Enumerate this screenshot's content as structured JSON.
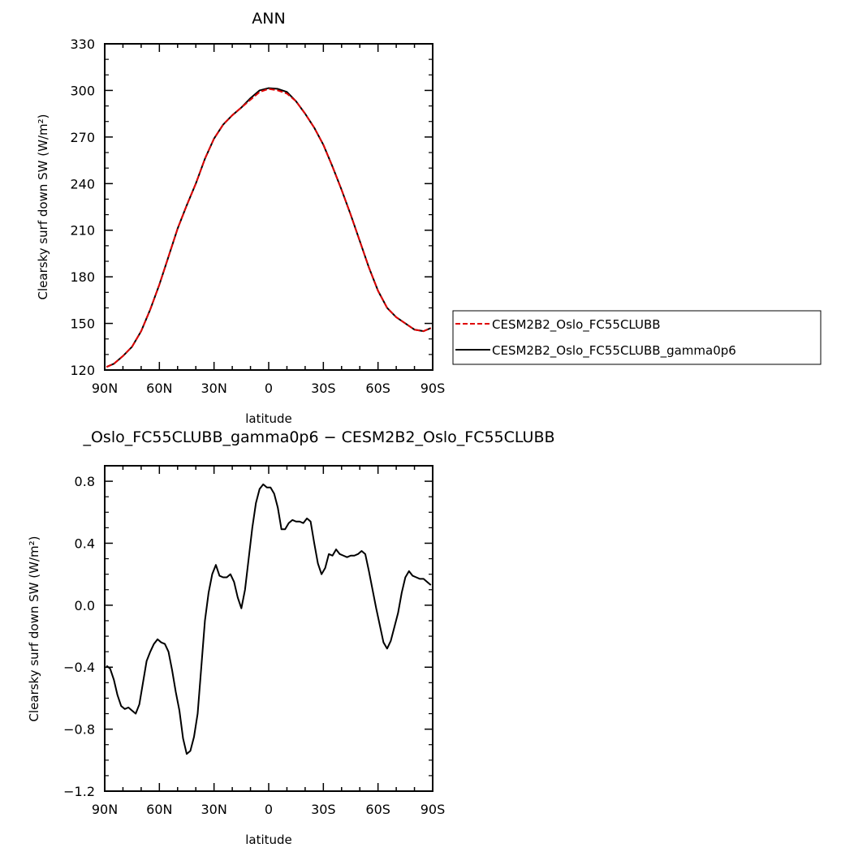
{
  "chart_data": [
    {
      "type": "line",
      "title": "ANN",
      "xlabel": "latitude",
      "ylabel": "Clearsky surf down SW (W/m²)",
      "xlim": [
        90,
        -90
      ],
      "ylim": [
        120,
        330
      ],
      "x_ticks": [
        90,
        60,
        30,
        0,
        -30,
        -60,
        -90
      ],
      "x_tick_labels": [
        "90N",
        "60N",
        "30N",
        "0",
        "30S",
        "60S",
        "90S"
      ],
      "y_ticks": [
        120,
        150,
        180,
        210,
        240,
        270,
        300,
        330
      ],
      "y_tick_labels": [
        "120",
        "150",
        "180",
        "210",
        "240",
        "270",
        "300",
        "330"
      ],
      "legend_position": "right",
      "series": [
        {
          "name": "CESM2B2_Oslo_FC55CLUBB",
          "color": "#e00000",
          "dash": "dashed",
          "x": [
            89,
            85,
            80,
            75,
            70,
            65,
            60,
            55,
            50,
            45,
            40,
            35,
            30,
            25,
            20,
            15,
            10,
            5,
            0,
            -5,
            -10,
            -15,
            -20,
            -25,
            -30,
            -35,
            -40,
            -45,
            -50,
            -55,
            -60,
            -65,
            -70,
            -75,
            -80,
            -85,
            -89
          ],
          "y": [
            122,
            124,
            129,
            135,
            145,
            159,
            175,
            193,
            211,
            226,
            240,
            256,
            269,
            278,
            284,
            289,
            294,
            299,
            301,
            300,
            298,
            293,
            285,
            276,
            265,
            251,
            236,
            220,
            203,
            186,
            171,
            160,
            154,
            150,
            146,
            145,
            147
          ]
        },
        {
          "name": "CESM2B2_Oslo_FC55CLUBB_gamma0p6",
          "color": "#000000",
          "dash": "solid",
          "x": [
            89,
            85,
            80,
            75,
            70,
            65,
            60,
            55,
            50,
            45,
            40,
            35,
            30,
            25,
            20,
            15,
            10,
            5,
            0,
            -5,
            -10,
            -15,
            -20,
            -25,
            -30,
            -35,
            -40,
            -45,
            -50,
            -55,
            -60,
            -65,
            -70,
            -75,
            -80,
            -85,
            -89
          ],
          "y": [
            122,
            124,
            129,
            135,
            145,
            159,
            175,
            193,
            211,
            226,
            240,
            256,
            269,
            278,
            284,
            289,
            295,
            300,
            301.5,
            301,
            299,
            293,
            285,
            276,
            265,
            251,
            236,
            220,
            203,
            186,
            171,
            160,
            154,
            150,
            146,
            145,
            147
          ]
        }
      ]
    },
    {
      "type": "line",
      "title": "_Oslo_FC55CLUBB_gamma0p6 − CESM2B2_Oslo_FC55CLUBB",
      "xlabel": "latitude",
      "ylabel": "Clearsky surf down SW (W/m²)",
      "xlim": [
        90,
        -90
      ],
      "ylim": [
        -1.2,
        0.9
      ],
      "x_ticks": [
        90,
        60,
        30,
        0,
        -30,
        -60,
        -90
      ],
      "x_tick_labels": [
        "90N",
        "60N",
        "30N",
        "0",
        "30S",
        "60S",
        "90S"
      ],
      "y_ticks": [
        -1.2,
        -0.8,
        -0.4,
        0.0,
        0.4,
        0.8
      ],
      "y_tick_labels": [
        "−1.2",
        "−0.8",
        "−0.4",
        "0.0",
        "0.4",
        "0.8"
      ],
      "series": [
        {
          "color": "#000000",
          "dash": "solid",
          "x": [
            89,
            87,
            85,
            83,
            81,
            79,
            77,
            75,
            73,
            71,
            69,
            67,
            65,
            63,
            61,
            59,
            57,
            55,
            53,
            51,
            49,
            47,
            45,
            43,
            41,
            39,
            37,
            35,
            33,
            31,
            29,
            27,
            25,
            23,
            21,
            19,
            17,
            15,
            13,
            11,
            9,
            7,
            5,
            3,
            1,
            -1,
            -3,
            -5,
            -7,
            -9,
            -11,
            -13,
            -15,
            -17,
            -19,
            -21,
            -23,
            -25,
            -27,
            -29,
            -31,
            -33,
            -35,
            -37,
            -39,
            -41,
            -43,
            -45,
            -47,
            -49,
            -51,
            -53,
            -55,
            -57,
            -59,
            -61,
            -63,
            -65,
            -67,
            -69,
            -71,
            -73,
            -75,
            -77,
            -79,
            -81,
            -83,
            -85,
            -87,
            -89
          ],
          "y": [
            -0.39,
            -0.41,
            -0.48,
            -0.58,
            -0.65,
            -0.67,
            -0.66,
            -0.68,
            -0.7,
            -0.64,
            -0.5,
            -0.36,
            -0.3,
            -0.25,
            -0.22,
            -0.24,
            -0.25,
            -0.3,
            -0.42,
            -0.56,
            -0.68,
            -0.86,
            -0.96,
            -0.94,
            -0.85,
            -0.7,
            -0.4,
            -0.1,
            0.08,
            0.2,
            0.26,
            0.19,
            0.18,
            0.18,
            0.2,
            0.15,
            0.05,
            -0.02,
            0.1,
            0.3,
            0.5,
            0.66,
            0.75,
            0.78,
            0.76,
            0.76,
            0.72,
            0.63,
            0.49,
            0.49,
            0.53,
            0.55,
            0.54,
            0.54,
            0.53,
            0.56,
            0.54,
            0.4,
            0.27,
            0.2,
            0.24,
            0.33,
            0.32,
            0.36,
            0.33,
            0.32,
            0.31,
            0.32,
            0.32,
            0.33,
            0.35,
            0.33,
            0.22,
            0.1,
            -0.02,
            -0.13,
            -0.24,
            -0.28,
            -0.23,
            -0.14,
            -0.05,
            0.08,
            0.18,
            0.22,
            0.19,
            0.18,
            0.17,
            0.17,
            0.15,
            0.13
          ]
        }
      ]
    }
  ]
}
